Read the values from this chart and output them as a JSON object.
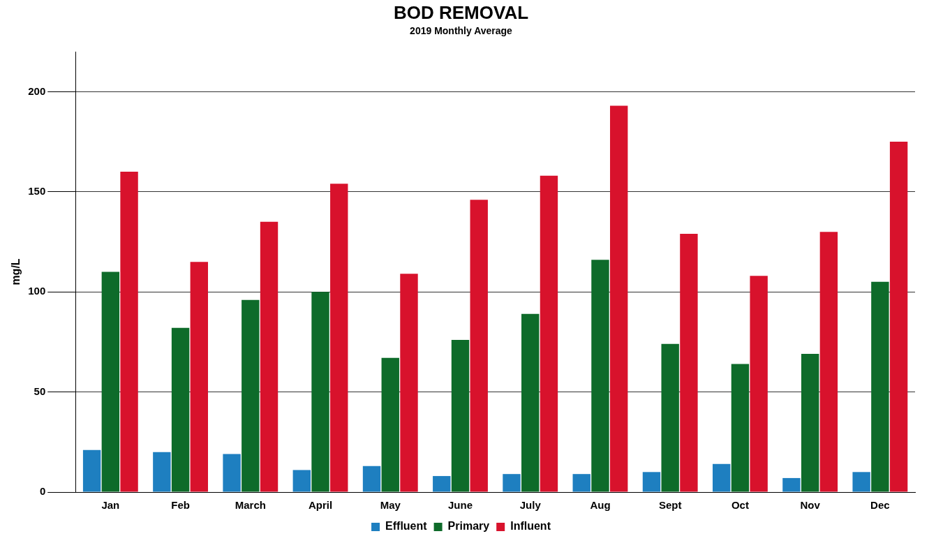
{
  "chart_data": {
    "type": "bar",
    "title": "BOD REMOVAL",
    "subtitle": "2019 Monthly Average",
    "ylabel": "mg/L",
    "categories": [
      "Jan",
      "Feb",
      "March",
      "April",
      "May",
      "June",
      "July",
      "Aug",
      "Sept",
      "Oct",
      "Nov",
      "Dec"
    ],
    "series": [
      {
        "name": "Effluent",
        "color": "#1e7fc0",
        "values": [
          21,
          20,
          19,
          11,
          13,
          8,
          9,
          9,
          10,
          14,
          7,
          10
        ]
      },
      {
        "name": "Primary",
        "color": "#0e6b2a",
        "values": [
          110,
          82,
          96,
          100,
          67,
          76,
          89,
          116,
          74,
          64,
          69,
          105
        ]
      },
      {
        "name": "Influent",
        "color": "#d8122c",
        "values": [
          160,
          115,
          135,
          154,
          109,
          146,
          158,
          193,
          129,
          108,
          130,
          175
        ]
      }
    ],
    "ylim": [
      0,
      220
    ],
    "yticks": [
      0,
      50,
      100,
      150,
      200
    ],
    "grid": "y",
    "legend": "bottom"
  }
}
